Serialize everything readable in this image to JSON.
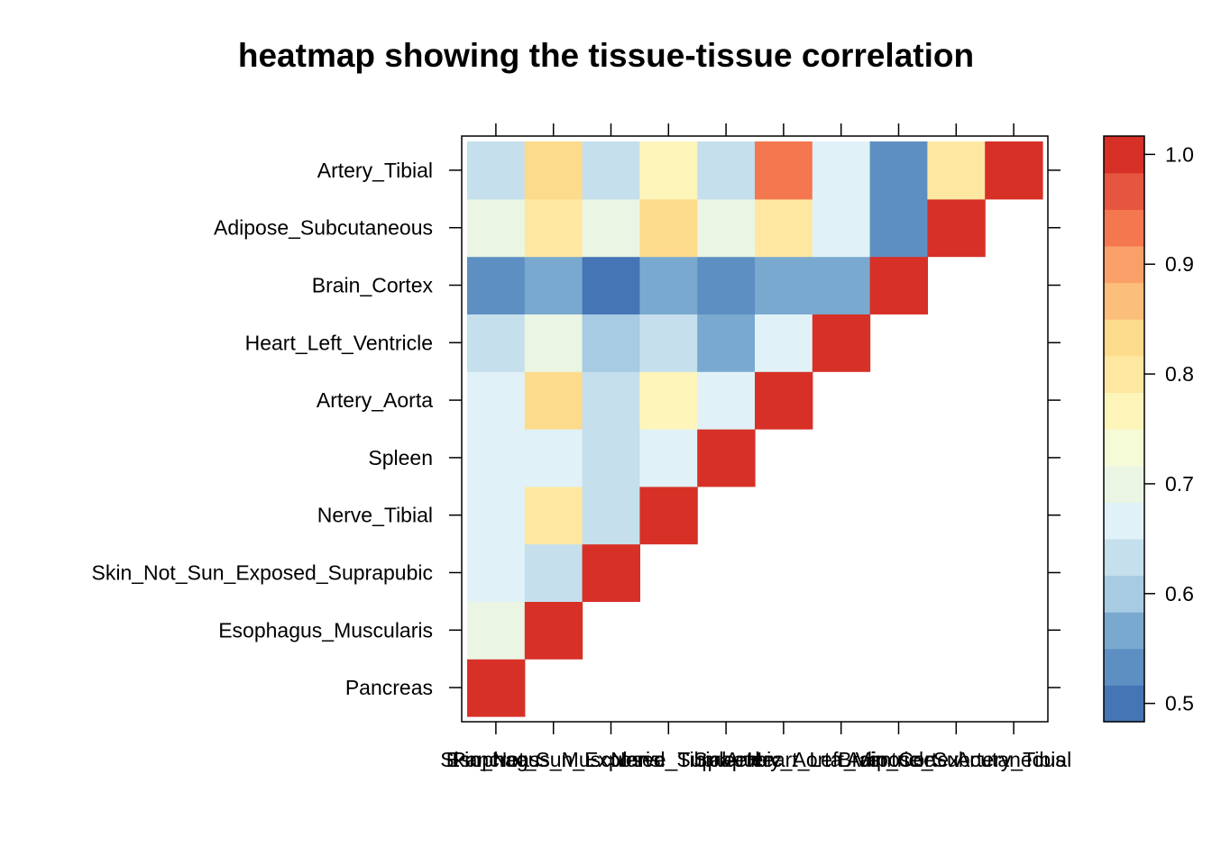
{
  "chart_data": {
    "type": "heatmap",
    "title": "heatmap showing the tissue-tissue correlation",
    "categories": [
      "Pancreas",
      "Esophagus_Muscularis",
      "Skin_Not_Sun_Exposed_Suprapubic",
      "Nerve_Tibial",
      "Spleen",
      "Artery_Aorta",
      "Heart_Left_Ventricle",
      "Brain_Cortex",
      "Adipose_Subcutaneous",
      "Artery_Tibial"
    ],
    "values": [
      [
        1.0,
        null,
        null,
        null,
        null,
        null,
        null,
        null,
        null,
        null
      ],
      [
        0.71,
        1.0,
        null,
        null,
        null,
        null,
        null,
        null,
        null,
        null
      ],
      [
        0.68,
        0.64,
        1.0,
        null,
        null,
        null,
        null,
        null,
        null,
        null
      ],
      [
        0.68,
        0.79,
        0.64,
        1.0,
        null,
        null,
        null,
        null,
        null,
        null
      ],
      [
        0.68,
        0.68,
        0.64,
        0.68,
        1.0,
        null,
        null,
        null,
        null,
        null
      ],
      [
        0.68,
        0.84,
        0.64,
        0.76,
        0.68,
        1.0,
        null,
        null,
        null,
        null
      ],
      [
        0.62,
        0.71,
        0.61,
        0.64,
        0.57,
        0.68,
        1.0,
        null,
        null,
        null
      ],
      [
        0.53,
        0.57,
        0.5,
        0.57,
        0.53,
        0.57,
        0.57,
        1.0,
        null,
        null
      ],
      [
        0.71,
        0.79,
        0.71,
        0.82,
        0.71,
        0.79,
        0.68,
        0.53,
        1.0,
        null
      ],
      [
        0.64,
        0.82,
        0.64,
        0.76,
        0.64,
        0.94,
        0.68,
        0.53,
        0.79,
        1.0
      ]
    ],
    "colorbar": {
      "breaks": [
        0.4833,
        0.5167,
        0.55,
        0.5833,
        0.6167,
        0.65,
        0.6833,
        0.7167,
        0.75,
        0.7833,
        0.8167,
        0.85,
        0.8833,
        0.9167,
        0.95,
        0.9833,
        1.0167
      ],
      "colors": [
        "#4575B4",
        "#5E8FC2",
        "#7AA9CF",
        "#A6CBE2",
        "#C5DFEC",
        "#E0F2F8",
        "#EAF5E4",
        "#F5FBD6",
        "#FEF5BB",
        "#FEE8A1",
        "#FDDB8C",
        "#FCBF7B",
        "#FB9F68",
        "#F5774F",
        "#E6553F",
        "#D73027"
      ],
      "ticks": [
        0.5,
        0.6,
        0.7,
        0.8,
        0.9,
        1.0
      ],
      "tick_labels": [
        "0.5",
        "0.6",
        "0.7",
        "0.8",
        "0.9",
        "1.0"
      ]
    }
  }
}
